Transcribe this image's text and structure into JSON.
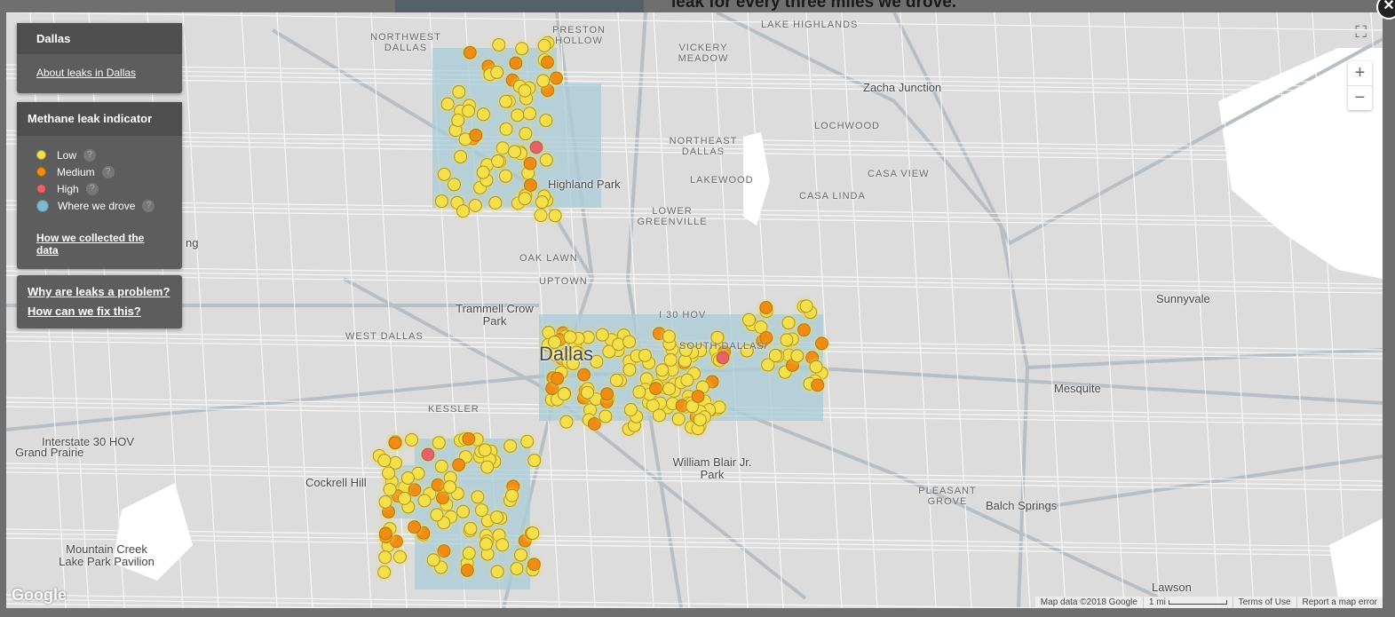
{
  "page_text": "leak for every three miles we drove.",
  "panel_city": {
    "title": "Dallas",
    "link": "About leaks in Dallas"
  },
  "legend": {
    "title": "Methane leak indicator",
    "items": [
      {
        "label": "Low",
        "color": "#f5e04a"
      },
      {
        "label": "Medium",
        "color": "#f08c12"
      },
      {
        "label": "High",
        "color": "#e8606a"
      },
      {
        "label": "Where we drove",
        "color": "#7fb8cf"
      }
    ],
    "help": "?",
    "link": "How we collected the data"
  },
  "questions": [
    "Why are leaks a problem?",
    "How can we fix this?"
  ],
  "map": {
    "zoom_in": "+",
    "zoom_out": "−",
    "fullscreen": "⛶",
    "close": "✕",
    "logo": "Google",
    "places": [
      "Northwest Dallas",
      "Preston Hollow",
      "Vickery Meadow",
      "Lake Highlands",
      "Lochwood",
      "Northeast Dallas",
      "Casa View",
      "Lakewood",
      "Casa Linda",
      "Lower Greenville",
      "Oak Lawn",
      "Uptown",
      "West Dallas",
      "I 30 HOV",
      "South Dallas/",
      "Kessler",
      "Pleasant Grove"
    ],
    "cities": [
      "Zacha Junction",
      "Highland Park",
      "Trammell Crow Park",
      "Dallas",
      "Interstate 30 HOV",
      "Grand Prairie",
      "Cockrell Hill",
      "William Blair Jr. Park",
      "Mesquite",
      "Sunnyvale",
      "Balch Springs",
      "Lawson",
      "Mountain Creek Lake Park Pavilion",
      "ng"
    ]
  },
  "footer": {
    "data": "Map data ©2018 Google",
    "scale": "1 mi",
    "terms": "Terms of Use",
    "report": "Report a map error"
  }
}
